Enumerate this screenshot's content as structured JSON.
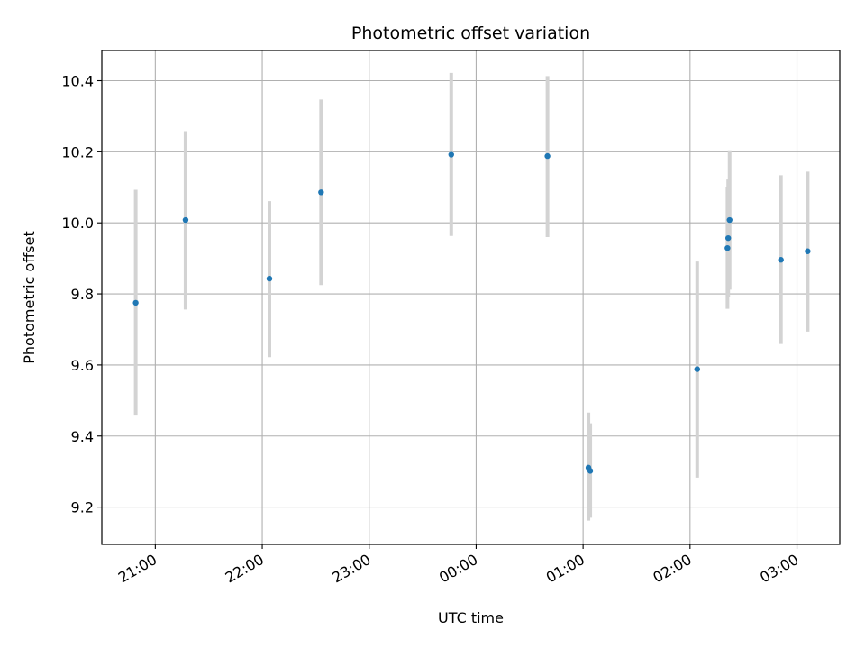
{
  "chart_data": {
    "type": "scatter",
    "title": "Photometric offset variation",
    "xlabel": "UTC time",
    "ylabel": "Photometric offset",
    "grid": true,
    "x_unit": "hours since 20:00 UTC",
    "xlim": [
      0.5,
      7.4
    ],
    "ylim": [
      9.095,
      10.485
    ],
    "x_ticks": [
      {
        "value": 1,
        "label": "21:00"
      },
      {
        "value": 2,
        "label": "22:00"
      },
      {
        "value": 3,
        "label": "23:00"
      },
      {
        "value": 4,
        "label": "00:00"
      },
      {
        "value": 5,
        "label": "01:00"
      },
      {
        "value": 6,
        "label": "02:00"
      },
      {
        "value": 7,
        "label": "03:00"
      }
    ],
    "y_ticks": [
      {
        "value": 9.2,
        "label": "9.2"
      },
      {
        "value": 9.4,
        "label": "9.4"
      },
      {
        "value": 9.6,
        "label": "9.6"
      },
      {
        "value": 9.8,
        "label": "9.8"
      },
      {
        "value": 10.0,
        "label": "10.0"
      },
      {
        "value": 10.2,
        "label": "10.2"
      },
      {
        "value": 10.4,
        "label": "10.4"
      }
    ],
    "point_color": "#1f77b4",
    "errorbar_color": "#d3d3d3",
    "series": [
      {
        "points": [
          {
            "x": 0.817,
            "y": 9.775,
            "ylow": 9.46,
            "yhigh": 10.093
          },
          {
            "x": 1.283,
            "y": 10.008,
            "ylow": 9.756,
            "yhigh": 10.258
          },
          {
            "x": 2.067,
            "y": 9.843,
            "ylow": 9.622,
            "yhigh": 10.061
          },
          {
            "x": 2.55,
            "y": 10.086,
            "ylow": 9.825,
            "yhigh": 10.347
          },
          {
            "x": 3.767,
            "y": 10.192,
            "ylow": 9.963,
            "yhigh": 10.422
          },
          {
            "x": 4.667,
            "y": 10.188,
            "ylow": 9.96,
            "yhigh": 10.413
          },
          {
            "x": 5.05,
            "y": 9.311,
            "ylow": 9.162,
            "yhigh": 9.466
          },
          {
            "x": 5.067,
            "y": 9.302,
            "ylow": 9.17,
            "yhigh": 9.436
          },
          {
            "x": 6.067,
            "y": 9.588,
            "ylow": 9.283,
            "yhigh": 9.891
          },
          {
            "x": 6.35,
            "y": 9.929,
            "ylow": 9.758,
            "yhigh": 10.1
          },
          {
            "x": 6.357,
            "y": 9.957,
            "ylow": 9.79,
            "yhigh": 10.122
          },
          {
            "x": 6.37,
            "y": 10.008,
            "ylow": 9.812,
            "yhigh": 10.204
          },
          {
            "x": 6.85,
            "y": 9.896,
            "ylow": 9.659,
            "yhigh": 10.134
          },
          {
            "x": 7.1,
            "y": 9.92,
            "ylow": 9.694,
            "yhigh": 10.144
          }
        ]
      }
    ]
  }
}
